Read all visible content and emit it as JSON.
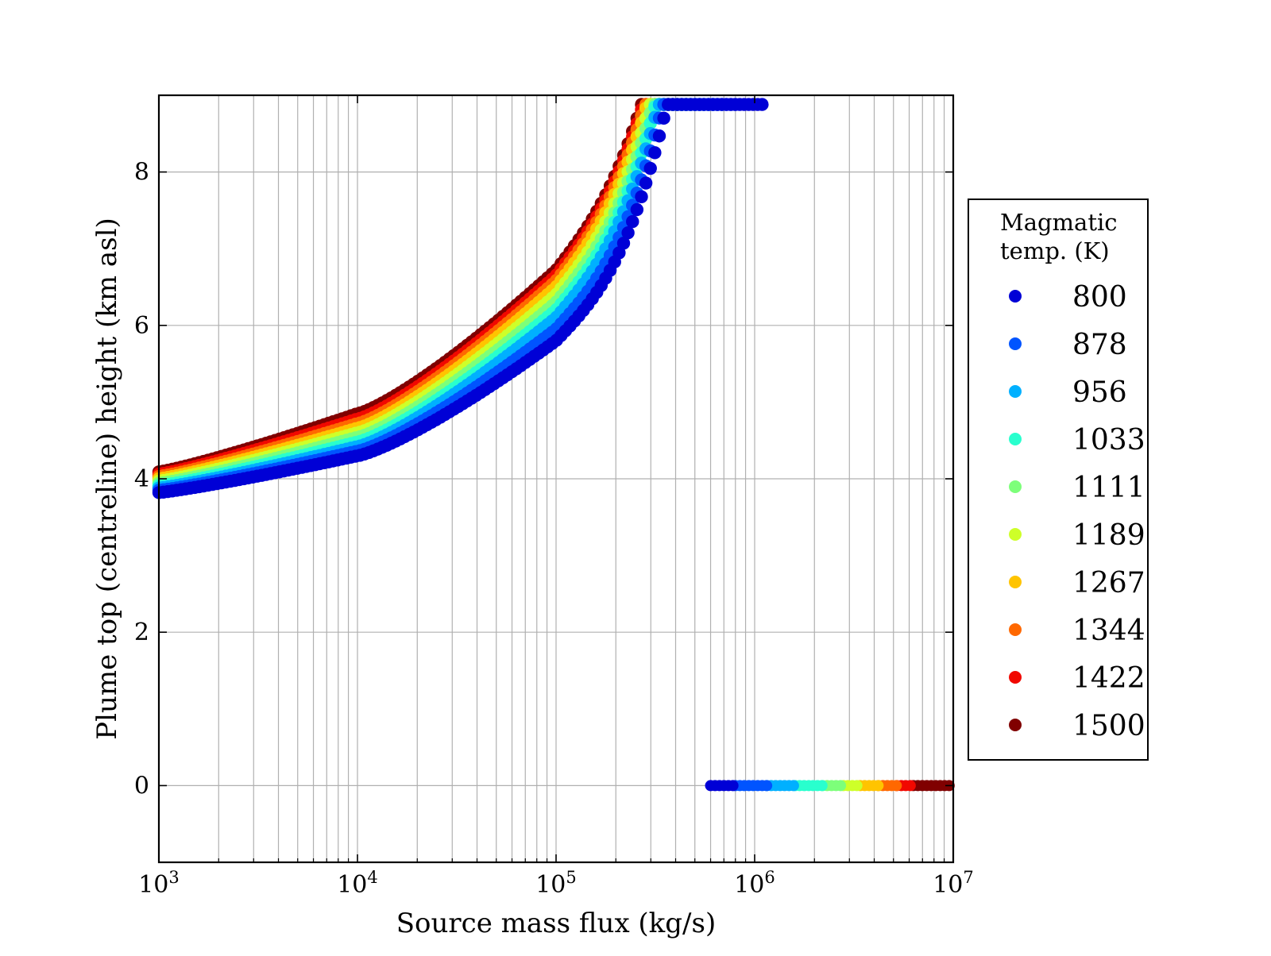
{
  "chart_data": {
    "type": "scatter",
    "title": "",
    "xlabel": "Source mass flux (kg/s)",
    "ylabel": "Plume top (centreline) height (km asl)",
    "x_scale": "log",
    "xlim": [
      1000,
      10000000
    ],
    "ylim": [
      -1,
      9
    ],
    "x_ticks": [
      {
        "value": 1000,
        "base": "10",
        "exp": "3"
      },
      {
        "value": 10000,
        "base": "10",
        "exp": "4"
      },
      {
        "value": 100000,
        "base": "10",
        "exp": "5"
      },
      {
        "value": 1000000,
        "base": "10",
        "exp": "6"
      },
      {
        "value": 10000000,
        "base": "10",
        "exp": "7"
      }
    ],
    "y_ticks": [
      {
        "value": 0,
        "label": "0"
      },
      {
        "value": 2,
        "label": "2"
      },
      {
        "value": 4,
        "label": "4"
      },
      {
        "value": 6,
        "label": "6"
      },
      {
        "value": 8,
        "label": "8"
      }
    ],
    "grid": true,
    "legend": {
      "title_line1": "Magmatic",
      "title_line2": "temp. (K)",
      "placement": "right-outside"
    },
    "series": [
      {
        "name": "800",
        "color": "#0000d6",
        "h_1e3": 3.82,
        "h_1e4": 4.3,
        "h_1e5": 5.8,
        "mass_flux_collapse": 1100000,
        "mass_flux_ground_start": 600000,
        "mass_flux_ground_end": 800000
      },
      {
        "name": "878",
        "color": "#0054ff",
        "h_1e3": 3.85,
        "h_1e4": 4.36,
        "h_1e5": 5.95,
        "mass_flux_collapse": 820000,
        "mass_flux_ground_start": 800000,
        "mass_flux_ground_end": 1150000
      },
      {
        "name": "956",
        "color": "#00b0ff",
        "h_1e3": 3.88,
        "h_1e4": 4.42,
        "h_1e5": 6.1,
        "mass_flux_collapse": 700000,
        "mass_flux_ground_start": 1150000,
        "mass_flux_ground_end": 1600000
      },
      {
        "name": "1033",
        "color": "#29ffce",
        "h_1e3": 3.91,
        "h_1e4": 4.48,
        "h_1e5": 6.2,
        "mass_flux_collapse": 640000,
        "mass_flux_ground_start": 1600000,
        "mass_flux_ground_end": 2200000
      },
      {
        "name": "1111",
        "color": "#7dff7a",
        "h_1e3": 3.94,
        "h_1e4": 4.54,
        "h_1e5": 6.3,
        "mass_flux_collapse": 560000,
        "mass_flux_ground_start": 2200000,
        "mass_flux_ground_end": 2800000
      },
      {
        "name": "1189",
        "color": "#ceff29",
        "h_1e3": 3.97,
        "h_1e4": 4.6,
        "h_1e5": 6.4,
        "mass_flux_collapse": 500000,
        "mass_flux_ground_start": 2800000,
        "mass_flux_ground_end": 3400000
      },
      {
        "name": "1267",
        "color": "#ffc400",
        "h_1e3": 4.0,
        "h_1e4": 4.66,
        "h_1e5": 6.5,
        "mass_flux_collapse": 460000,
        "mass_flux_ground_start": 3400000,
        "mass_flux_ground_end": 4200000
      },
      {
        "name": "1344",
        "color": "#ff6800",
        "h_1e3": 4.03,
        "h_1e4": 4.72,
        "h_1e5": 6.58,
        "mass_flux_collapse": 420000,
        "mass_flux_ground_start": 4200000,
        "mass_flux_ground_end": 5200000
      },
      {
        "name": "1422",
        "color": "#f10800",
        "h_1e3": 4.06,
        "h_1e4": 4.78,
        "h_1e5": 6.65,
        "mass_flux_collapse": 390000,
        "mass_flux_ground_start": 5200000,
        "mass_flux_ground_end": 6300000
      },
      {
        "name": "1500",
        "color": "#800000",
        "h_1e3": 4.09,
        "h_1e4": 4.85,
        "h_1e5": 6.72,
        "mass_flux_collapse": 360000,
        "mass_flux_ground_start": 6300000,
        "mass_flux_ground_end": 10000000
      }
    ]
  }
}
